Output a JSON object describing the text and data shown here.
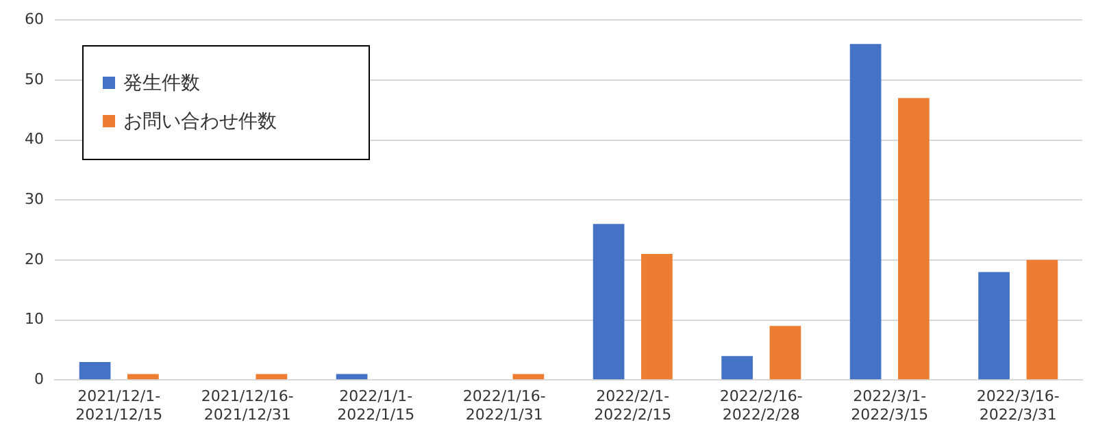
{
  "chart_data": {
    "type": "bar",
    "categories": [
      "2021/12/1-\n2021/12/15",
      "2021/12/16-\n2021/12/31",
      "2022/1/1-\n2022/1/15",
      "2022/1/16-\n2022/1/31",
      "2022/2/1-\n2022/2/15",
      "2022/2/16-\n2022/2/28",
      "2022/3/1-\n2022/3/15",
      "2022/3/16-\n2022/3/31"
    ],
    "series": [
      {
        "name": "発生件数",
        "color": "#4472c4",
        "values": [
          3,
          0,
          1,
          0,
          26,
          4,
          56,
          18
        ]
      },
      {
        "name": "お問い合わせ件数",
        "color": "#ed7d31",
        "values": [
          1,
          1,
          0,
          1,
          21,
          9,
          47,
          20
        ]
      }
    ],
    "ylim": [
      0,
      60
    ],
    "yticks": [
      0,
      10,
      20,
      30,
      40,
      50,
      60
    ],
    "grid": "y",
    "legend": "top left"
  }
}
